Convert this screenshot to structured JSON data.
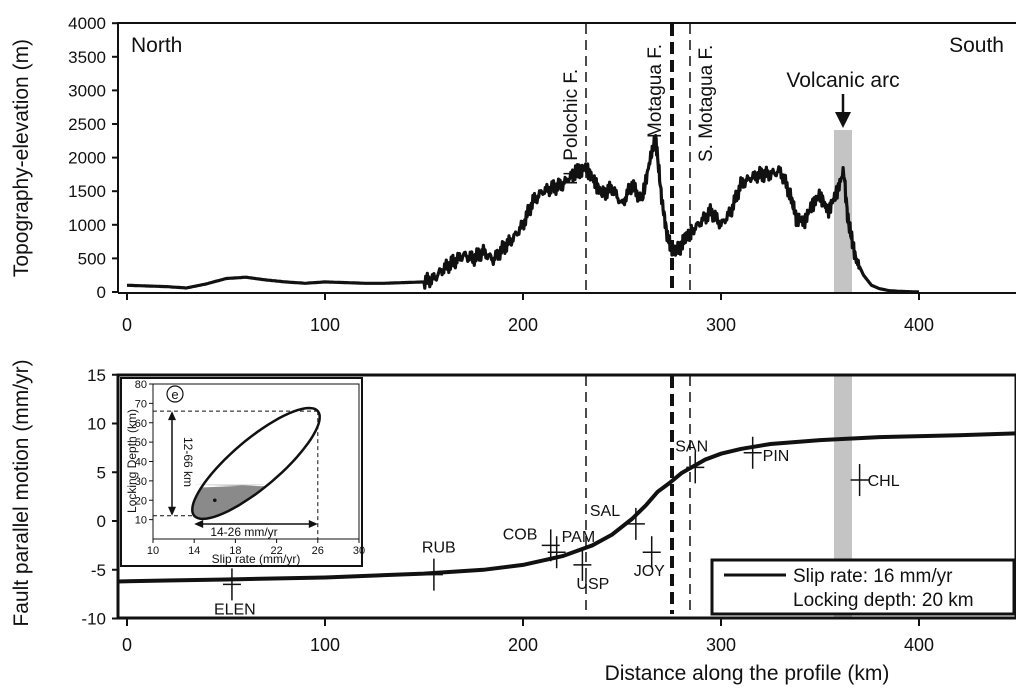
{
  "chart_data": [
    {
      "type": "line",
      "xlabel": "",
      "ylabel": "Topography-elevation (m)",
      "xlim": [
        -5,
        450
      ],
      "ylim": [
        0,
        4000
      ],
      "xticks": [
        "0",
        "100",
        "200",
        "300",
        "400"
      ],
      "yticks": [
        "0",
        "500",
        "1000",
        "1500",
        "2000",
        "2500",
        "3000",
        "3500",
        "4000"
      ],
      "annotations": {
        "north": "North",
        "south": "South",
        "n_polochic": "N. Polochic F.",
        "motagua": "Motagua F.",
        "s_motagua": "S. Motagua F.",
        "volcanic_arc": "Volcanic arc"
      },
      "fault_lines_x": {
        "n_polochic": 233,
        "motagua": 276,
        "s_motagua": 283
      },
      "volcanic_arc_band": [
        356,
        366
      ],
      "series": [
        {
          "x": [
            0,
            10,
            20,
            30,
            40,
            50,
            60,
            70,
            80,
            90,
            100,
            110,
            120,
            130,
            140,
            150,
            155,
            160,
            165,
            170,
            175,
            180,
            185,
            190,
            195,
            200,
            205,
            210,
            215,
            220,
            225,
            228,
            232,
            236,
            240,
            245,
            250,
            255,
            260,
            264,
            267,
            270,
            273,
            276,
            279,
            282,
            285,
            290,
            295,
            300,
            305,
            310,
            315,
            320,
            325,
            330,
            335,
            338,
            342,
            346,
            350,
            354,
            358,
            362,
            364,
            366,
            368,
            372,
            376,
            380,
            385,
            390,
            395,
            400
          ],
          "values": [
            100,
            90,
            80,
            60,
            120,
            200,
            220,
            180,
            150,
            130,
            150,
            140,
            130,
            130,
            140,
            150,
            200,
            350,
            450,
            550,
            500,
            600,
            480,
            650,
            800,
            1000,
            1350,
            1500,
            1550,
            1600,
            1750,
            1800,
            1850,
            1650,
            1450,
            1550,
            1300,
            1600,
            1350,
            1950,
            2300,
            1400,
            800,
            600,
            650,
            800,
            900,
            1050,
            1200,
            1000,
            1200,
            1600,
            1700,
            1750,
            1750,
            1800,
            1450,
            1100,
            1050,
            1300,
            1450,
            1200,
            1450,
            1800,
            1100,
            800,
            500,
            250,
            100,
            50,
            20,
            10,
            5,
            0
          ]
        }
      ]
    },
    {
      "type": "line",
      "xlabel": "Distance along the profile (km)",
      "ylabel": "Fault parallel motion (mm/yr)",
      "xlim": [
        -5,
        450
      ],
      "ylim": [
        -10,
        15
      ],
      "xticks": [
        "0",
        "100",
        "200",
        "300",
        "400"
      ],
      "yticks": [
        "-10",
        "-5",
        "0",
        "5",
        "10",
        "15"
      ],
      "legend": {
        "entries": [
          "Slip rate: 16 mm/yr",
          "Locking depth: 20 km"
        ],
        "placement": "bottom-right"
      },
      "series": [
        {
          "name": "Slip rate: 16 mm/yr",
          "x": [
            -5,
            20,
            50,
            100,
            150,
            180,
            200,
            220,
            235,
            245,
            255,
            262,
            268,
            274,
            280,
            286,
            292,
            300,
            310,
            325,
            350,
            380,
            420,
            450
          ],
          "values": [
            -6.2,
            -6.1,
            -6.0,
            -5.8,
            -5.4,
            -5.0,
            -4.5,
            -3.6,
            -2.5,
            -1.4,
            0.2,
            1.6,
            3.0,
            3.9,
            4.9,
            5.6,
            6.3,
            6.9,
            7.4,
            7.9,
            8.3,
            8.6,
            8.8,
            9.0
          ]
        }
      ],
      "stations": [
        {
          "name": "ELEN",
          "x": 53,
          "y": -6.5
        },
        {
          "name": "RUB",
          "x": 155,
          "y": -5.5
        },
        {
          "name": "COB",
          "x": 214,
          "y": -2.5
        },
        {
          "name": "PAM",
          "x": 217,
          "y": -3.2
        },
        {
          "name": "USP",
          "x": 230,
          "y": -4.5
        },
        {
          "name": "SAL",
          "x": 257,
          "y": -0.3
        },
        {
          "name": "JOY",
          "x": 265,
          "y": -3.2
        },
        {
          "name": "SAN",
          "x": 287,
          "y": 5.5
        },
        {
          "name": "PIN",
          "x": 316,
          "y": 7.0
        },
        {
          "name": "CHL",
          "x": 370,
          "y": 4.2
        }
      ],
      "inset": {
        "panel_label": "e",
        "xlabel": "Slip rate (mm/yr)",
        "ylabel": "Locking Depth (km)",
        "xlim": [
          10,
          30
        ],
        "ylim": [
          0,
          80
        ],
        "xticks": [
          "10",
          "14",
          "18",
          "22",
          "26",
          "30"
        ],
        "yticks": [
          "10",
          "20",
          "30",
          "40",
          "50",
          "60",
          "70",
          "80"
        ],
        "depth_range_label": "12-66 km",
        "slip_range_label": "14-26 mm/yr",
        "depth_range": [
          12,
          66
        ],
        "slip_range": [
          14,
          26
        ],
        "best_fit": {
          "x": 16,
          "y": 20
        }
      }
    }
  ]
}
